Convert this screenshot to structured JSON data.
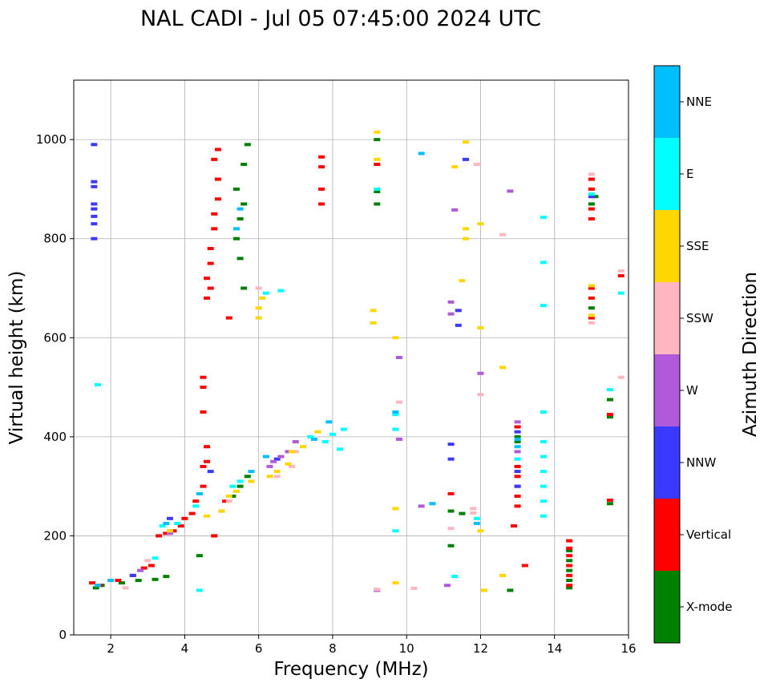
{
  "chart_data": {
    "type": "scatter",
    "title": "NAL CADI - Jul 05 07:45:00 2024 UTC",
    "xlabel": "Frequency (MHz)",
    "ylabel": "Virtual height (km)",
    "xlim": [
      1,
      16
    ],
    "ylim": [
      0,
      1120
    ],
    "xticks": [
      2,
      4,
      6,
      8,
      10,
      12,
      14,
      16
    ],
    "yticks": [
      0,
      200,
      400,
      600,
      800,
      1000
    ],
    "grid": true,
    "colorbar": {
      "title": "Azimuth Direction",
      "categories": [
        {
          "name": "X-mode",
          "color": "#008000"
        },
        {
          "name": "Vertical",
          "color": "#ff0000"
        },
        {
          "name": "NNW",
          "color": "#3a3aff"
        },
        {
          "name": "W",
          "color": "#b05adb"
        },
        {
          "name": "SSW",
          "color": "#ffb6c1"
        },
        {
          "name": "SSE",
          "color": "#ffd700"
        },
        {
          "name": "E",
          "color": "#00ffff"
        },
        {
          "name": "NNE",
          "color": "#00bfff"
        }
      ]
    },
    "series": [
      {
        "name": "X-mode",
        "points": [
          [
            1.6,
            95
          ],
          [
            1.75,
            100
          ],
          [
            2.3,
            105
          ],
          [
            2.75,
            110
          ],
          [
            3.2,
            112
          ],
          [
            3.5,
            118
          ],
          [
            4.4,
            160
          ],
          [
            4.8,
            200
          ],
          [
            5.0,
            250
          ],
          [
            5.3,
            280
          ],
          [
            5.5,
            300
          ],
          [
            5.7,
            320
          ],
          [
            5.6,
            700
          ],
          [
            5.5,
            760
          ],
          [
            5.4,
            800
          ],
          [
            5.5,
            840
          ],
          [
            5.6,
            870
          ],
          [
            5.4,
            900
          ],
          [
            5.6,
            950
          ],
          [
            5.7,
            990
          ],
          [
            9.2,
            870
          ],
          [
            9.2,
            895
          ],
          [
            9.2,
            1000
          ],
          [
            11.2,
            180
          ],
          [
            11.2,
            250
          ],
          [
            11.5,
            245
          ],
          [
            12.8,
            90
          ],
          [
            13.0,
            390
          ],
          [
            13.0,
            400
          ],
          [
            14.4,
            95
          ],
          [
            14.4,
            110
          ],
          [
            14.4,
            130
          ],
          [
            14.4,
            150
          ],
          [
            14.4,
            170
          ],
          [
            15.0,
            660
          ],
          [
            15.0,
            870
          ],
          [
            15.1,
            885
          ],
          [
            15.5,
            265
          ],
          [
            15.5,
            440
          ],
          [
            15.5,
            475
          ]
        ]
      },
      {
        "name": "Vertical",
        "points": [
          [
            1.5,
            105
          ],
          [
            1.7,
            100
          ],
          [
            2.2,
            110
          ],
          [
            2.6,
            120
          ],
          [
            2.9,
            135
          ],
          [
            3.1,
            140
          ],
          [
            3.3,
            200
          ],
          [
            3.5,
            205
          ],
          [
            3.7,
            210
          ],
          [
            3.9,
            220
          ],
          [
            4.0,
            235
          ],
          [
            4.2,
            245
          ],
          [
            4.3,
            270
          ],
          [
            4.5,
            300
          ],
          [
            4.5,
            340
          ],
          [
            4.6,
            350
          ],
          [
            4.5,
            450
          ],
          [
            4.5,
            500
          ],
          [
            4.5,
            520
          ],
          [
            4.6,
            380
          ],
          [
            4.8,
            200
          ],
          [
            5.1,
            270
          ],
          [
            4.6,
            680
          ],
          [
            4.7,
            700
          ],
          [
            4.6,
            720
          ],
          [
            4.7,
            750
          ],
          [
            4.7,
            780
          ],
          [
            4.8,
            820
          ],
          [
            4.8,
            850
          ],
          [
            4.9,
            880
          ],
          [
            4.9,
            920
          ],
          [
            4.8,
            960
          ],
          [
            4.9,
            980
          ],
          [
            5.2,
            640
          ],
          [
            7.7,
            870
          ],
          [
            7.7,
            900
          ],
          [
            7.7,
            945
          ],
          [
            7.7,
            965
          ],
          [
            9.2,
            950
          ],
          [
            11.2,
            285
          ],
          [
            12.9,
            220
          ],
          [
            13.0,
            260
          ],
          [
            13.0,
            280
          ],
          [
            13.0,
            300
          ],
          [
            13.0,
            320
          ],
          [
            13.0,
            340
          ],
          [
            13.0,
            420
          ],
          [
            13.2,
            140
          ],
          [
            14.4,
            100
          ],
          [
            14.4,
            120
          ],
          [
            14.4,
            140
          ],
          [
            14.4,
            160
          ],
          [
            14.4,
            175
          ],
          [
            14.4,
            190
          ],
          [
            15.0,
            640
          ],
          [
            15.0,
            680
          ],
          [
            15.0,
            700
          ],
          [
            15.0,
            840
          ],
          [
            15.0,
            860
          ],
          [
            15.0,
            900
          ],
          [
            15.0,
            920
          ],
          [
            15.5,
            272
          ],
          [
            15.5,
            445
          ],
          [
            15.8,
            725
          ]
        ]
      },
      {
        "name": "NNW",
        "points": [
          [
            1.55,
            800
          ],
          [
            1.55,
            830
          ],
          [
            1.55,
            845
          ],
          [
            1.55,
            860
          ],
          [
            1.55,
            870
          ],
          [
            1.55,
            905
          ],
          [
            1.55,
            915
          ],
          [
            1.55,
            990
          ],
          [
            2.6,
            120
          ],
          [
            3.6,
            235
          ],
          [
            4.7,
            330
          ],
          [
            6.5,
            355
          ],
          [
            11.2,
            355
          ],
          [
            11.2,
            385
          ],
          [
            11.4,
            625
          ],
          [
            11.4,
            655
          ],
          [
            11.6,
            960
          ],
          [
            13.0,
            300
          ],
          [
            13.0,
            330
          ],
          [
            13.0,
            410
          ],
          [
            15.0,
            885
          ]
        ]
      },
      {
        "name": "W",
        "points": [
          [
            2.8,
            130
          ],
          [
            3.6,
            205
          ],
          [
            6.3,
            340
          ],
          [
            6.4,
            350
          ],
          [
            6.6,
            360
          ],
          [
            6.8,
            370
          ],
          [
            7.0,
            390
          ],
          [
            9.2,
            90
          ],
          [
            9.8,
            395
          ],
          [
            9.8,
            560
          ],
          [
            10.4,
            260
          ],
          [
            11.1,
            100
          ],
          [
            11.2,
            648
          ],
          [
            11.2,
            672
          ],
          [
            11.3,
            858
          ],
          [
            12.0,
            528
          ],
          [
            12.8,
            896
          ],
          [
            13.0,
            370
          ],
          [
            13.0,
            430
          ]
        ]
      },
      {
        "name": "SSW",
        "points": [
          [
            2.4,
            95
          ],
          [
            3.0,
            150
          ],
          [
            5.2,
            270
          ],
          [
            6.0,
            700
          ],
          [
            6.5,
            320
          ],
          [
            6.9,
            340
          ],
          [
            7.0,
            370
          ],
          [
            9.2,
            92
          ],
          [
            9.8,
            470
          ],
          [
            10.2,
            94
          ],
          [
            11.2,
            215
          ],
          [
            11.8,
            246
          ],
          [
            11.8,
            255
          ],
          [
            11.9,
            950
          ],
          [
            12.0,
            485
          ],
          [
            12.6,
            808
          ],
          [
            15.0,
            630
          ],
          [
            15.0,
            930
          ],
          [
            15.8,
            520
          ],
          [
            15.8,
            735
          ]
        ]
      },
      {
        "name": "SSE",
        "points": [
          [
            3.6,
            210
          ],
          [
            4.6,
            240
          ],
          [
            5.0,
            250
          ],
          [
            5.2,
            280
          ],
          [
            5.4,
            290
          ],
          [
            5.8,
            310
          ],
          [
            6.0,
            640
          ],
          [
            6.0,
            660
          ],
          [
            6.1,
            680
          ],
          [
            6.3,
            320
          ],
          [
            6.5,
            330
          ],
          [
            6.8,
            345
          ],
          [
            6.9,
            370
          ],
          [
            7.2,
            380
          ],
          [
            7.6,
            410
          ],
          [
            9.1,
            630
          ],
          [
            9.1,
            655
          ],
          [
            9.2,
            960
          ],
          [
            9.2,
            1015
          ],
          [
            9.7,
            105
          ],
          [
            9.7,
            255
          ],
          [
            9.7,
            600
          ],
          [
            11.3,
            945
          ],
          [
            11.5,
            715
          ],
          [
            11.6,
            800
          ],
          [
            11.6,
            820
          ],
          [
            11.6,
            995
          ],
          [
            12.0,
            210
          ],
          [
            12.0,
            620
          ],
          [
            12.0,
            830
          ],
          [
            12.1,
            90
          ],
          [
            12.6,
            120
          ],
          [
            12.6,
            540
          ],
          [
            15.0,
            645
          ],
          [
            15.0,
            705
          ]
        ]
      },
      {
        "name": "E",
        "points": [
          [
            1.65,
            505
          ],
          [
            3.2,
            155
          ],
          [
            3.4,
            220
          ],
          [
            3.8,
            225
          ],
          [
            4.4,
            90
          ],
          [
            4.3,
            260
          ],
          [
            5.3,
            300
          ],
          [
            5.5,
            310
          ],
          [
            6.2,
            690
          ],
          [
            6.6,
            695
          ],
          [
            7.4,
            400
          ],
          [
            7.8,
            390
          ],
          [
            8.0,
            405
          ],
          [
            8.2,
            375
          ],
          [
            8.3,
            415
          ],
          [
            9.2,
            900
          ],
          [
            9.7,
            210
          ],
          [
            9.7,
            415
          ],
          [
            9.7,
            445
          ],
          [
            11.3,
            118
          ],
          [
            11.9,
            235
          ],
          [
            13.0,
            355
          ],
          [
            13.7,
            240
          ],
          [
            13.7,
            270
          ],
          [
            13.7,
            300
          ],
          [
            13.7,
            330
          ],
          [
            13.7,
            360
          ],
          [
            13.7,
            390
          ],
          [
            13.7,
            450
          ],
          [
            13.7,
            665
          ],
          [
            13.7,
            752
          ],
          [
            13.7,
            843
          ],
          [
            15.0,
            890
          ],
          [
            15.5,
            495
          ],
          [
            15.8,
            690
          ]
        ]
      },
      {
        "name": "NNE",
        "points": [
          [
            1.65,
            100
          ],
          [
            2.0,
            110
          ],
          [
            3.5,
            225
          ],
          [
            4.4,
            285
          ],
          [
            5.4,
            820
          ],
          [
            5.5,
            860
          ],
          [
            5.8,
            330
          ],
          [
            6.2,
            360
          ],
          [
            7.5,
            395
          ],
          [
            7.9,
            430
          ],
          [
            9.7,
            450
          ],
          [
            10.4,
            972
          ],
          [
            10.7,
            265
          ],
          [
            11.9,
            225
          ],
          [
            13.0,
            380
          ],
          [
            13.0,
            395
          ]
        ]
      }
    ]
  }
}
